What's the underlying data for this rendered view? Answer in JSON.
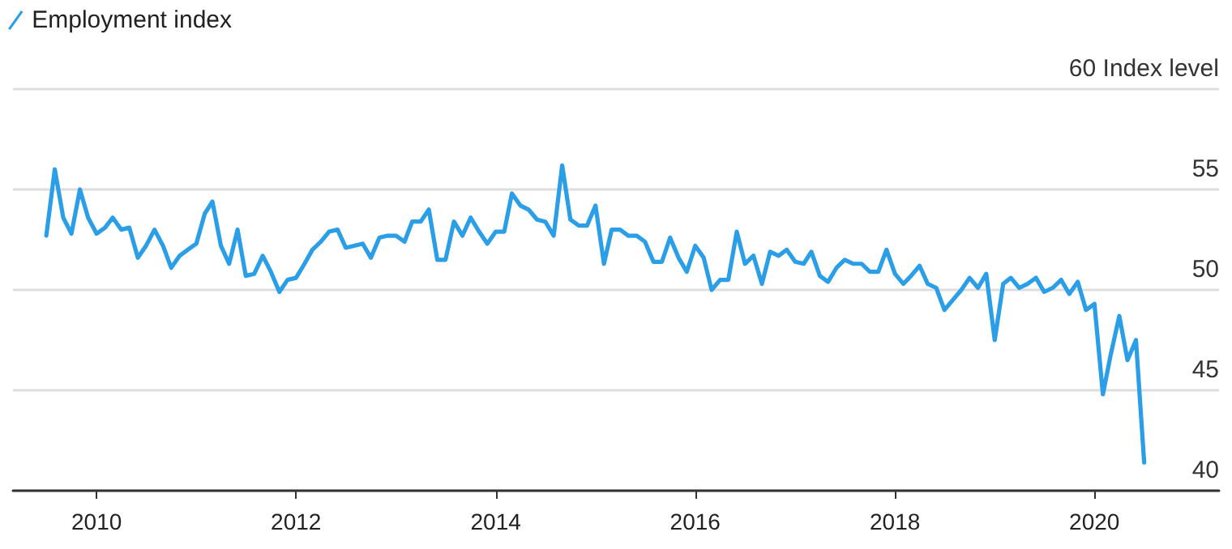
{
  "chart_data": {
    "type": "line",
    "legend": "top left",
    "grid": "y",
    "marker": "none",
    "line_style": "solid",
    "x": [
      "2009-07",
      "2009-08",
      "2009-09",
      "2009-10",
      "2009-11",
      "2009-12",
      "2010-01",
      "2010-02",
      "2010-03",
      "2010-04",
      "2010-05",
      "2010-06",
      "2010-07",
      "2010-08",
      "2010-09",
      "2010-10",
      "2010-11",
      "2010-12",
      "2011-01",
      "2011-02",
      "2011-03",
      "2011-04",
      "2011-05",
      "2011-06",
      "2011-07",
      "2011-08",
      "2011-09",
      "2011-10",
      "2011-11",
      "2011-12",
      "2012-01",
      "2012-02",
      "2012-03",
      "2012-04",
      "2012-05",
      "2012-06",
      "2012-07",
      "2012-08",
      "2012-09",
      "2012-10",
      "2012-11",
      "2012-12",
      "2013-01",
      "2013-02",
      "2013-03",
      "2013-04",
      "2013-05",
      "2013-06",
      "2013-07",
      "2013-08",
      "2013-09",
      "2013-10",
      "2013-11",
      "2013-12",
      "2014-01",
      "2014-02",
      "2014-03",
      "2014-04",
      "2014-05",
      "2014-06",
      "2014-07",
      "2014-08",
      "2014-09",
      "2014-10",
      "2014-11",
      "2014-12",
      "2015-01",
      "2015-02",
      "2015-03",
      "2015-04",
      "2015-05",
      "2015-06",
      "2015-07",
      "2015-08",
      "2015-09",
      "2015-10",
      "2015-11",
      "2015-12",
      "2016-01",
      "2016-02",
      "2016-03",
      "2016-04",
      "2016-05",
      "2016-06",
      "2016-07",
      "2016-08",
      "2016-09",
      "2016-10",
      "2016-11",
      "2016-12",
      "2017-01",
      "2017-02",
      "2017-03",
      "2017-04",
      "2017-05",
      "2017-06",
      "2017-07",
      "2017-08",
      "2017-09",
      "2017-10",
      "2017-11",
      "2017-12",
      "2018-01",
      "2018-02",
      "2018-03",
      "2018-04",
      "2018-05",
      "2018-06",
      "2018-07",
      "2018-08",
      "2018-09",
      "2018-10",
      "2018-11",
      "2018-12",
      "2019-01",
      "2019-02",
      "2019-03",
      "2019-04",
      "2019-05",
      "2019-06",
      "2019-07",
      "2019-08",
      "2019-09",
      "2019-10",
      "2019-11",
      "2019-12",
      "2020-01",
      "2020-02",
      "2020-03",
      "2020-04",
      "2020-05",
      "2020-06",
      "2020-07"
    ],
    "series": [
      {
        "name": "Employment index",
        "color": "#2b9ee8",
        "values": [
          52.7,
          56.0,
          53.6,
          52.8,
          55.0,
          53.6,
          52.8,
          53.1,
          53.6,
          53.0,
          53.1,
          51.6,
          52.2,
          53.0,
          52.2,
          51.1,
          51.7,
          52.0,
          52.3,
          53.8,
          54.4,
          52.2,
          51.3,
          53.0,
          50.7,
          50.8,
          51.7,
          50.9,
          49.9,
          50.5,
          50.6,
          51.3,
          52.0,
          52.4,
          52.9,
          53.0,
          52.1,
          52.2,
          52.3,
          51.6,
          52.6,
          52.7,
          52.7,
          52.4,
          53.4,
          53.4,
          54.0,
          51.5,
          51.5,
          53.4,
          52.7,
          53.6,
          52.9,
          52.3,
          52.9,
          52.9,
          54.8,
          54.2,
          54.0,
          53.5,
          53.4,
          52.7,
          56.2,
          53.5,
          53.2,
          53.2,
          54.2,
          51.3,
          53.0,
          53.0,
          52.7,
          52.7,
          52.4,
          51.4,
          51.4,
          52.6,
          51.6,
          50.9,
          52.2,
          51.6,
          50.0,
          50.5,
          50.5,
          52.9,
          51.3,
          51.7,
          50.3,
          51.9,
          51.7,
          52.0,
          51.4,
          51.3,
          51.9,
          50.7,
          50.4,
          51.1,
          51.5,
          51.3,
          51.3,
          50.9,
          50.9,
          52.0,
          50.8,
          50.3,
          50.7,
          51.2,
          50.3,
          50.1,
          49.0,
          49.5,
          50.0,
          50.6,
          50.1,
          50.8,
          47.5,
          50.3,
          50.6,
          50.1,
          50.3,
          50.6,
          49.9,
          50.1,
          50.5,
          49.8,
          50.4,
          49.0,
          49.3,
          44.8,
          46.8,
          48.7,
          46.5,
          47.5,
          41.4
        ]
      }
    ],
    "xlim": [
      "2009-03",
      "2021-04"
    ],
    "xticks": [
      "2010",
      "2012",
      "2014",
      "2016",
      "2018",
      "2020"
    ],
    "ylim": [
      40,
      60
    ],
    "yticks": [
      40,
      45,
      50,
      55,
      {
        "value": 60,
        "label": "60 Index level"
      }
    ]
  }
}
